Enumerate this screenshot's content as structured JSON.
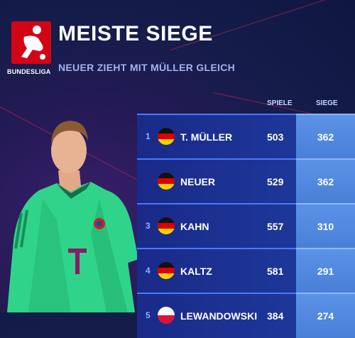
{
  "header": {
    "brand": "BUNDESLIGA",
    "title": "MEISTE SIEGE",
    "subtitle": "NEUER ZIEHT MIT MÜLLER GLEICH"
  },
  "columns": {
    "spiele": "SPIELE",
    "siege": "SIEGE"
  },
  "rows": [
    {
      "rank": "1",
      "name": "T. MÜLLER",
      "spiele": "503",
      "siege": "362"
    },
    {
      "rank": "",
      "name": "NEUER",
      "spiele": "529",
      "siege": "362"
    },
    {
      "rank": "3",
      "name": "KAHN",
      "spiele": "557",
      "siege": "310"
    },
    {
      "rank": "4",
      "name": "KALTZ",
      "spiele": "581",
      "siege": "291"
    },
    {
      "rank": "5",
      "name": "LEWANDOWSKI",
      "spiele": "384",
      "siege": "274"
    }
  ],
  "colors": {
    "accent": "#d20515",
    "table": "#1d3799",
    "siege": "#5b92e6"
  }
}
